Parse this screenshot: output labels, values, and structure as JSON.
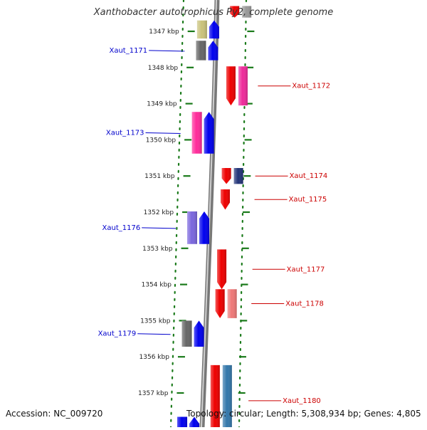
{
  "title": "Xanthobacter autotrophicus Py2, complete genome",
  "footer": {
    "accession": "Accession: NC_009720",
    "topology": "Topology: circular; Length: 5,308,934 bp; Genes: 4,805"
  },
  "scale": {
    "unit": "kbp",
    "ticks": [
      {
        "kbp": 1347,
        "label": "1347 kbp"
      },
      {
        "kbp": 1348,
        "label": "1348 kbp"
      },
      {
        "kbp": 1349,
        "label": "1349 kbp"
      },
      {
        "kbp": 1350,
        "label": "1350 kbp"
      },
      {
        "kbp": 1351,
        "label": "1351 kbp"
      },
      {
        "kbp": 1352,
        "label": "1352 kbp"
      },
      {
        "kbp": 1353,
        "label": "1353 kbp"
      },
      {
        "kbp": 1354,
        "label": "1354 kbp"
      },
      {
        "kbp": 1355,
        "label": "1355 kbp"
      },
      {
        "kbp": 1356,
        "label": "1356 kbp"
      },
      {
        "kbp": 1357,
        "label": "1357 kbp"
      }
    ]
  },
  "colors": {
    "label_left": "#0000cc",
    "label_right": "#cc0000",
    "tick": "#1a7a1a",
    "backbone": "#999999"
  },
  "genes_left": [
    {
      "name": "",
      "start_kbp": 1346.7,
      "end_kbp": 1347.2,
      "color_a": "#c9c27a",
      "color_b": "#0000ee"
    },
    {
      "name": "Xaut_1171",
      "start_kbp": 1347.26,
      "end_kbp": 1347.8,
      "color_a": "#666666",
      "color_b": "#0000ee"
    },
    {
      "name": "Xaut_1173",
      "start_kbp": 1349.23,
      "end_kbp": 1350.38,
      "color_a": "#ff2a9a",
      "color_b": "#0000ee"
    },
    {
      "name": "Xaut_1176",
      "start_kbp": 1351.98,
      "end_kbp": 1352.88,
      "color_a": "#7a66dd",
      "color_b": "#0000ee"
    },
    {
      "name": "Xaut_1179",
      "start_kbp": 1355.0,
      "end_kbp": 1355.72,
      "color_a": "#666666",
      "color_b": "#0000ee"
    },
    {
      "name": "",
      "start_kbp": 1357.66,
      "end_kbp": 1358.2,
      "color_a": "#0000ee",
      "color_b": "#0000ee"
    }
  ],
  "genes_right": [
    {
      "name": "",
      "start_kbp": 1346.3,
      "end_kbp": 1346.62,
      "color_a": "#ee0000",
      "color_b": "#999999"
    },
    {
      "name": "Xaut_1172",
      "start_kbp": 1347.97,
      "end_kbp": 1349.05,
      "color_a": "#ee0000",
      "color_b": "#ee2a9a"
    },
    {
      "name": "Xaut_1174",
      "start_kbp": 1350.78,
      "end_kbp": 1351.22,
      "color_a": "#ee0000",
      "color_b": "#223377"
    },
    {
      "name": "Xaut_1175",
      "start_kbp": 1351.37,
      "end_kbp": 1351.93,
      "color_a": "#ee0000",
      "color_b": ""
    },
    {
      "name": "Xaut_1177",
      "start_kbp": 1353.03,
      "end_kbp": 1354.13,
      "color_a": "#ee0000",
      "color_b": ""
    },
    {
      "name": "Xaut_1178",
      "start_kbp": 1354.13,
      "end_kbp": 1354.93,
      "color_a": "#ee0000",
      "color_b": "#ee7777"
    },
    {
      "name": "Xaut_1180",
      "start_kbp": 1356.23,
      "end_kbp": 1358.2,
      "color_a": "#ee0000",
      "color_b": "#3377aa"
    }
  ]
}
